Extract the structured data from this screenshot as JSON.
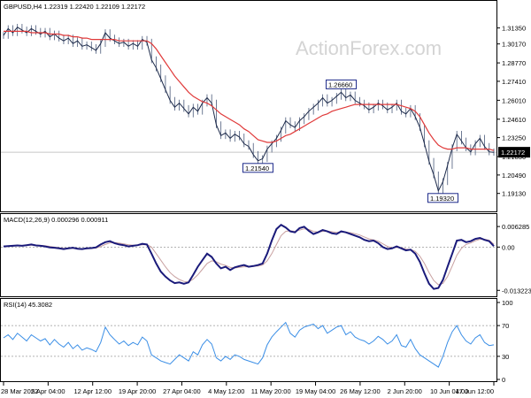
{
  "chart_data": {
    "type": "line",
    "symbol_info": "GBPUSD,H4  1.22319 1.22420 1.22109 1.22172",
    "watermark": "ActionForex.com",
    "current_price_label": "1.22172",
    "current_price": 1.22172,
    "x_ticks": [
      "28 Mar 2022",
      "5 Apr 04:00",
      "12 Apr 12:00",
      "19 Apr 20:00",
      "27 Apr 04:00",
      "4 May 12:00",
      "11 May 20:00",
      "19 May 04:00",
      "26 May 12:00",
      "2 Jun 20:00",
      "10 Jun 04:00",
      "17 Jun 12:00"
    ],
    "price_panel": {
      "ylim": [
        1.18,
        1.325
      ],
      "y_ticks": [
        "1.31350",
        "1.30170",
        "1.28770",
        "1.27410",
        "1.26010",
        "1.24610",
        "1.23250",
        "1.21850",
        "1.20490",
        "1.19130"
      ],
      "y_tick_values": [
        1.3135,
        1.3017,
        1.2877,
        1.2741,
        1.2601,
        1.2461,
        1.2325,
        1.2185,
        1.2049,
        1.1913
      ],
      "close_series": [
        1.308,
        1.313,
        1.31,
        1.314,
        1.312,
        1.31,
        1.313,
        1.311,
        1.309,
        1.311,
        1.307,
        1.309,
        1.306,
        1.304,
        1.306,
        1.302,
        1.304,
        1.3,
        1.301,
        1.299,
        1.297,
        1.302,
        1.31,
        1.306,
        1.304,
        1.302,
        1.303,
        1.3,
        1.302,
        1.3,
        1.305,
        1.303,
        1.29,
        1.284,
        1.276,
        1.268,
        1.26,
        1.255,
        1.258,
        1.254,
        1.25,
        1.255,
        1.252,
        1.258,
        1.262,
        1.258,
        1.242,
        1.234,
        1.236,
        1.232,
        1.235,
        1.233,
        1.228,
        1.226,
        1.22,
        1.2154,
        1.217,
        1.224,
        1.228,
        1.232,
        1.238,
        1.245,
        1.242,
        1.24,
        1.245,
        1.248,
        1.252,
        1.255,
        1.258,
        1.262,
        1.258,
        1.26,
        1.263,
        1.266,
        1.262,
        1.264,
        1.26,
        1.258,
        1.256,
        1.253,
        1.255,
        1.258,
        1.256,
        1.253,
        1.255,
        1.258,
        1.252,
        1.25,
        1.254,
        1.248,
        1.24,
        1.228,
        1.215,
        1.205,
        1.1932,
        1.2,
        1.212,
        1.225,
        1.235,
        1.23,
        1.225,
        1.222,
        1.228,
        1.232,
        1.226,
        1.222,
        1.2217
      ],
      "ma_series": [
        1.311,
        1.311,
        1.311,
        1.311,
        1.311,
        1.311,
        1.31,
        1.31,
        1.31,
        1.31,
        1.309,
        1.309,
        1.309,
        1.308,
        1.308,
        1.307,
        1.307,
        1.306,
        1.306,
        1.305,
        1.305,
        1.305,
        1.305,
        1.305,
        1.305,
        1.304,
        1.304,
        1.304,
        1.304,
        1.304,
        1.304,
        1.304,
        1.302,
        1.298,
        1.293,
        1.288,
        1.283,
        1.278,
        1.274,
        1.27,
        1.266,
        1.263,
        1.261,
        1.259,
        1.258,
        1.256,
        1.253,
        1.25,
        1.248,
        1.246,
        1.244,
        1.242,
        1.239,
        1.237,
        1.234,
        1.231,
        1.23,
        1.229,
        1.229,
        1.23,
        1.232,
        1.234,
        1.235,
        1.237,
        1.239,
        1.241,
        1.243,
        1.245,
        1.247,
        1.249,
        1.25,
        1.252,
        1.253,
        1.254,
        1.255,
        1.256,
        1.257,
        1.257,
        1.257,
        1.257,
        1.257,
        1.257,
        1.257,
        1.257,
        1.257,
        1.257,
        1.256,
        1.255,
        1.254,
        1.252,
        1.248,
        1.242,
        1.236,
        1.231,
        1.227,
        1.225,
        1.224,
        1.224,
        1.225,
        1.225,
        1.225,
        1.224,
        1.224,
        1.224,
        1.224,
        1.224,
        1.223
      ],
      "annotations": [
        {
          "label": "1.26660",
          "index": 73,
          "value": 1.2666,
          "side": "above"
        },
        {
          "label": "1.21540",
          "index": 55,
          "value": 1.2154,
          "side": "below"
        },
        {
          "label": "1.19320",
          "index": 95,
          "value": 1.1932,
          "side": "below"
        }
      ]
    },
    "macd_panel": {
      "header": "MACD(12,26,9) 0.000296 0.000911",
      "ylim": [
        -0.0145,
        0.0074
      ],
      "y_ticks": [
        "0.006285",
        "0.00",
        "-0.013223"
      ],
      "y_tick_values": [
        0.006285,
        0.0,
        -0.013223
      ],
      "macd_series": [
        0.0002,
        0.0003,
        0.0004,
        0.0005,
        0.0004,
        0.0006,
        0.0008,
        0.0005,
        0.0004,
        0.0002,
        -0.0001,
        -0.0002,
        -0.0004,
        -0.0006,
        -0.0004,
        -0.0002,
        -0.0005,
        -0.0006,
        -0.0004,
        -0.0003,
        -0.0001,
        0.0008,
        0.0015,
        0.0018,
        0.0012,
        0.0008,
        0.0006,
        0.0002,
        0.0004,
        0.0006,
        0.001,
        0.0008,
        -0.002,
        -0.005,
        -0.0075,
        -0.009,
        -0.0102,
        -0.011,
        -0.0108,
        -0.0112,
        -0.0108,
        -0.0085,
        -0.006,
        -0.004,
        -0.002,
        -0.003,
        -0.005,
        -0.0065,
        -0.006,
        -0.007,
        -0.0062,
        -0.0058,
        -0.0055,
        -0.006,
        -0.0058,
        -0.0055,
        -0.005,
        -0.002,
        0.002,
        0.0055,
        0.0068,
        0.006,
        0.0048,
        0.0045,
        0.0058,
        0.0062,
        0.005,
        0.004,
        0.0045,
        0.0052,
        0.0048,
        0.0042,
        0.004,
        0.0048,
        0.0045,
        0.004,
        0.0035,
        0.003,
        0.0022,
        0.0018,
        0.002,
        0.0012,
        0.0,
        -0.0006,
        -0.0004,
        0.0002,
        -0.0004,
        -0.001,
        -0.0008,
        -0.002,
        -0.0045,
        -0.008,
        -0.0112,
        -0.0128,
        -0.0125,
        -0.01,
        -0.006,
        -0.002,
        0.002,
        0.0022,
        0.0015,
        0.0018,
        0.0025,
        0.0028,
        0.0022,
        0.0018,
        0.0003
      ],
      "signal_series": [
        0.0001,
        0.0002,
        0.0003,
        0.0004,
        0.0004,
        0.0005,
        0.0006,
        0.0006,
        0.0005,
        0.0004,
        0.0002,
        0.0,
        -0.0002,
        -0.0004,
        -0.0004,
        -0.0004,
        -0.0004,
        -0.0005,
        -0.0005,
        -0.0004,
        -0.0003,
        0.0002,
        0.0008,
        0.0013,
        0.0014,
        0.0012,
        0.001,
        0.0007,
        0.0006,
        0.0006,
        0.0007,
        0.0008,
        0.0,
        -0.002,
        -0.004,
        -0.006,
        -0.0078,
        -0.009,
        -0.0099,
        -0.0105,
        -0.0107,
        -0.0098,
        -0.0085,
        -0.0068,
        -0.005,
        -0.0042,
        -0.0045,
        -0.0052,
        -0.0056,
        -0.0062,
        -0.0064,
        -0.0062,
        -0.006,
        -0.006,
        -0.0059,
        -0.0058,
        -0.0055,
        -0.0042,
        -0.002,
        0.0008,
        0.0035,
        0.0048,
        0.005,
        0.0048,
        0.0052,
        0.0056,
        0.0054,
        0.0048,
        0.0046,
        0.0048,
        0.0049,
        0.0047,
        0.0045,
        0.0046,
        0.0046,
        0.0044,
        0.0041,
        0.0037,
        0.0031,
        0.0025,
        0.0022,
        0.0018,
        0.001,
        0.0002,
        -0.0002,
        -0.0001,
        -0.0002,
        -0.0006,
        -0.0007,
        -0.0013,
        -0.0028,
        -0.005,
        -0.0078,
        -0.0102,
        -0.0115,
        -0.0111,
        -0.009,
        -0.0058,
        -0.0025,
        -0.0004,
        0.0008,
        0.0013,
        0.0019,
        0.0024,
        0.0024,
        0.0021,
        0.0009
      ]
    },
    "rsi_panel": {
      "header": "RSI(14) 45.3082",
      "ylim": [
        0,
        100
      ],
      "y_ticks": [
        "100",
        "70",
        "30",
        "0"
      ],
      "y_tick_values": [
        100,
        70,
        30,
        0
      ],
      "levels": [
        70,
        30
      ],
      "rsi_series": [
        54,
        58,
        52,
        60,
        55,
        50,
        58,
        54,
        50,
        53,
        45,
        52,
        46,
        42,
        48,
        40,
        45,
        38,
        41,
        39,
        36,
        48,
        68,
        58,
        52,
        46,
        50,
        44,
        48,
        45,
        55,
        50,
        32,
        28,
        24,
        22,
        20,
        26,
        32,
        28,
        24,
        36,
        32,
        45,
        52,
        46,
        28,
        24,
        30,
        26,
        32,
        30,
        26,
        24,
        22,
        20,
        28,
        45,
        55,
        62,
        68,
        74,
        60,
        55,
        64,
        68,
        70,
        72,
        66,
        70,
        60,
        64,
        68,
        70,
        58,
        62,
        55,
        52,
        50,
        46,
        50,
        56,
        52,
        46,
        50,
        58,
        44,
        42,
        52,
        40,
        32,
        28,
        24,
        20,
        16,
        30,
        48,
        62,
        70,
        58,
        50,
        46,
        54,
        58,
        48,
        44,
        45
      ]
    }
  }
}
